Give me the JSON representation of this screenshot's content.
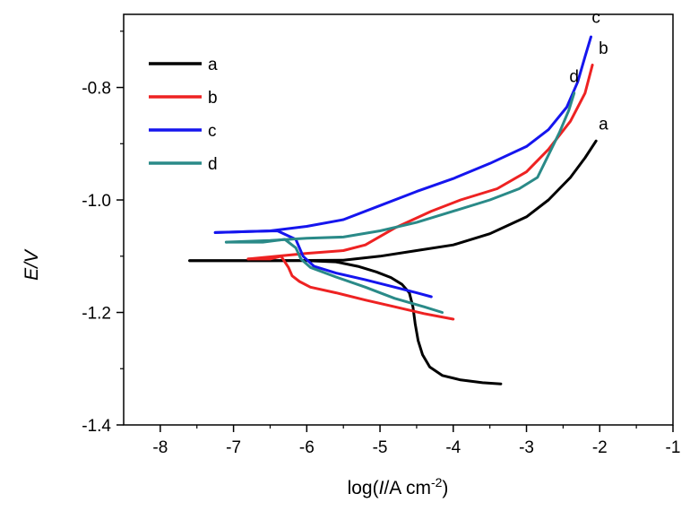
{
  "chart_data": {
    "type": "line",
    "xlabel": "log(I/A cm^-2)",
    "ylabel": "E/V",
    "xlim": [
      -8.5,
      -1
    ],
    "ylim": [
      -1.4,
      -0.67
    ],
    "x_ticks": [
      "-8",
      "-7",
      "-6",
      "-5",
      "-4",
      "-3",
      "-2",
      "-1"
    ],
    "y_ticks": [
      "-0.8",
      "-1.0",
      "-1.2",
      "-1.4"
    ],
    "legend_position": "top-left",
    "series": [
      {
        "name": "a",
        "color": "#000000",
        "cathodic": [
          [
            -7.6,
            -1.108
          ],
          [
            -7.0,
            -1.108
          ],
          [
            -6.5,
            -1.108
          ],
          [
            -6.0,
            -1.108
          ],
          [
            -5.6,
            -1.11
          ],
          [
            -5.3,
            -1.118
          ],
          [
            -5.05,
            -1.128
          ],
          [
            -4.85,
            -1.138
          ],
          [
            -4.7,
            -1.15
          ],
          [
            -4.6,
            -1.165
          ],
          [
            -4.55,
            -1.19
          ],
          [
            -4.52,
            -1.22
          ],
          [
            -4.48,
            -1.25
          ],
          [
            -4.42,
            -1.275
          ],
          [
            -4.32,
            -1.297
          ],
          [
            -4.15,
            -1.312
          ],
          [
            -3.9,
            -1.32
          ],
          [
            -3.6,
            -1.325
          ],
          [
            -3.35,
            -1.327
          ]
        ],
        "anodic": [
          [
            -7.6,
            -1.108
          ],
          [
            -6.5,
            -1.108
          ],
          [
            -5.5,
            -1.107
          ],
          [
            -5.0,
            -1.1
          ],
          [
            -4.5,
            -1.09
          ],
          [
            -4.0,
            -1.08
          ],
          [
            -3.5,
            -1.06
          ],
          [
            -3.0,
            -1.03
          ],
          [
            -2.7,
            -1.0
          ],
          [
            -2.4,
            -0.96
          ],
          [
            -2.2,
            -0.925
          ],
          [
            -2.05,
            -0.895
          ]
        ]
      },
      {
        "name": "b",
        "color": "#ee2222",
        "cathodic": [
          [
            -6.8,
            -1.105
          ],
          [
            -6.5,
            -1.105
          ],
          [
            -6.35,
            -1.1
          ],
          [
            -6.25,
            -1.12
          ],
          [
            -6.2,
            -1.135
          ],
          [
            -6.1,
            -1.145
          ],
          [
            -5.95,
            -1.155
          ],
          [
            -5.6,
            -1.165
          ],
          [
            -5.2,
            -1.178
          ],
          [
            -4.8,
            -1.19
          ],
          [
            -4.4,
            -1.202
          ],
          [
            -4.0,
            -1.212
          ]
        ],
        "anodic": [
          [
            -6.8,
            -1.105
          ],
          [
            -6.0,
            -1.095
          ],
          [
            -5.5,
            -1.09
          ],
          [
            -5.2,
            -1.08
          ],
          [
            -4.8,
            -1.05
          ],
          [
            -4.3,
            -1.02
          ],
          [
            -3.9,
            -1.0
          ],
          [
            -3.4,
            -0.98
          ],
          [
            -3.0,
            -0.95
          ],
          [
            -2.7,
            -0.91
          ],
          [
            -2.4,
            -0.86
          ],
          [
            -2.2,
            -0.81
          ],
          [
            -2.1,
            -0.76
          ]
        ]
      },
      {
        "name": "c",
        "color": "#1515ee",
        "cathodic": [
          [
            -7.25,
            -1.058
          ],
          [
            -6.8,
            -1.056
          ],
          [
            -6.4,
            -1.055
          ],
          [
            -6.15,
            -1.07
          ],
          [
            -6.05,
            -1.1
          ],
          [
            -5.9,
            -1.118
          ],
          [
            -5.6,
            -1.13
          ],
          [
            -5.2,
            -1.142
          ],
          [
            -4.8,
            -1.155
          ],
          [
            -4.5,
            -1.165
          ],
          [
            -4.3,
            -1.172
          ]
        ],
        "anodic": [
          [
            -7.25,
            -1.058
          ],
          [
            -6.5,
            -1.055
          ],
          [
            -6.0,
            -1.047
          ],
          [
            -5.5,
            -1.035
          ],
          [
            -5.0,
            -1.01
          ],
          [
            -4.5,
            -0.985
          ],
          [
            -4.0,
            -0.962
          ],
          [
            -3.5,
            -0.935
          ],
          [
            -3.0,
            -0.905
          ],
          [
            -2.7,
            -0.875
          ],
          [
            -2.45,
            -0.835
          ],
          [
            -2.3,
            -0.79
          ],
          [
            -2.2,
            -0.745
          ],
          [
            -2.12,
            -0.71
          ]
        ]
      },
      {
        "name": "d",
        "color": "#2a8a88",
        "cathodic": [
          [
            -7.1,
            -1.075
          ],
          [
            -6.6,
            -1.075
          ],
          [
            -6.3,
            -1.07
          ],
          [
            -6.15,
            -1.085
          ],
          [
            -6.08,
            -1.105
          ],
          [
            -5.95,
            -1.12
          ],
          [
            -5.6,
            -1.137
          ],
          [
            -5.2,
            -1.155
          ],
          [
            -4.8,
            -1.175
          ],
          [
            -4.4,
            -1.19
          ],
          [
            -4.15,
            -1.2
          ]
        ],
        "anodic": [
          [
            -7.1,
            -1.075
          ],
          [
            -6.5,
            -1.072
          ],
          [
            -6.0,
            -1.068
          ],
          [
            -5.5,
            -1.066
          ],
          [
            -5.0,
            -1.055
          ],
          [
            -4.5,
            -1.04
          ],
          [
            -4.0,
            -1.02
          ],
          [
            -3.5,
            -1.0
          ],
          [
            -3.1,
            -0.98
          ],
          [
            -2.85,
            -0.96
          ],
          [
            -2.7,
            -0.92
          ],
          [
            -2.55,
            -0.88
          ],
          [
            -2.42,
            -0.84
          ],
          [
            -2.35,
            -0.81
          ]
        ]
      }
    ],
    "end_labels": [
      {
        "text": "c",
        "x": -2.05,
        "y": -0.685
      },
      {
        "text": "b",
        "x": -1.95,
        "y": -0.74
      },
      {
        "text": "d",
        "x": -2.35,
        "y": -0.79
      },
      {
        "text": "a",
        "x": -1.95,
        "y": -0.875
      }
    ]
  }
}
